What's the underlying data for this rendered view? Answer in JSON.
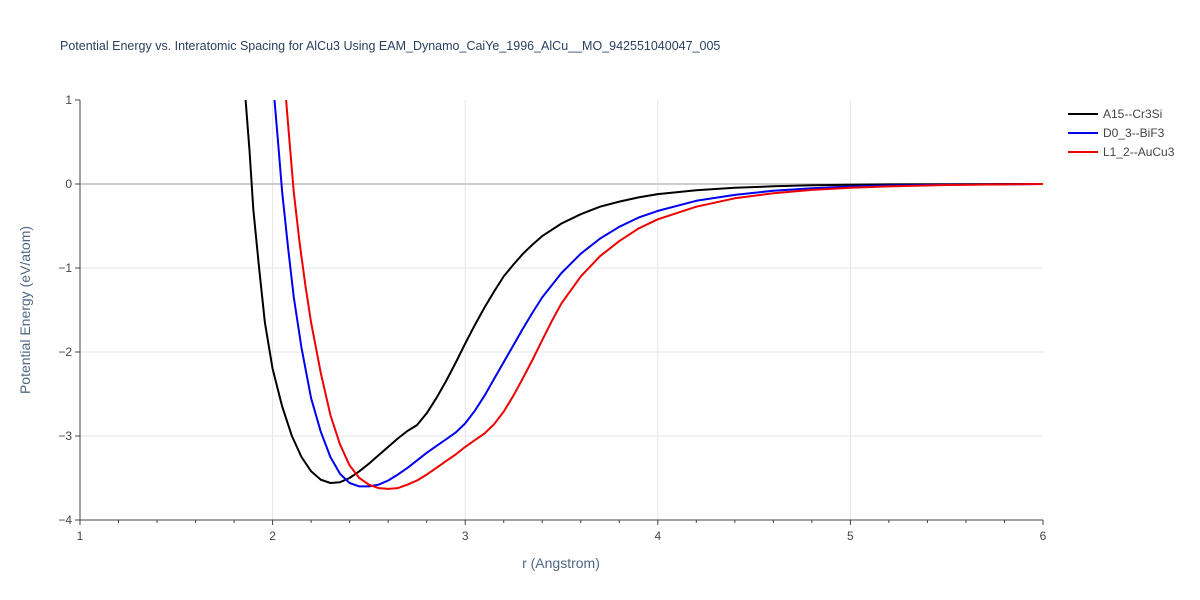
{
  "chart_data": {
    "type": "line",
    "title": "Potential Energy vs. Interatomic Spacing for AlCu3 Using EAM_Dynamo_CaiYe_1996_AlCu__MO_942551040047_005",
    "xlabel": "r (Angstrom)",
    "ylabel": "Potential Energy (eV/atom)",
    "xlim": [
      1,
      6
    ],
    "ylim": [
      -4,
      1
    ],
    "xticks": [
      1,
      2,
      3,
      4,
      5,
      6
    ],
    "yticks": [
      -4,
      -3,
      -2,
      -1,
      0,
      1
    ],
    "xtick_labels": [
      "1",
      "2",
      "3",
      "4",
      "5",
      "6"
    ],
    "ytick_labels": [
      "−4",
      "−3",
      "−2",
      "−1",
      "0",
      "1"
    ],
    "grid": true,
    "legend_position": "top-right",
    "series": [
      {
        "name": "A15--Cr3Si",
        "color": "#000000",
        "x": [
          1.86,
          1.88,
          1.9,
          1.93,
          1.96,
          2.0,
          2.05,
          2.1,
          2.15,
          2.2,
          2.25,
          2.3,
          2.35,
          2.4,
          2.45,
          2.5,
          2.55,
          2.6,
          2.65,
          2.7,
          2.75,
          2.8,
          2.85,
          2.9,
          2.95,
          3.0,
          3.05,
          3.1,
          3.15,
          3.2,
          3.25,
          3.3,
          3.35,
          3.4,
          3.5,
          3.6,
          3.7,
          3.8,
          3.9,
          4.0,
          4.2,
          4.4,
          4.6,
          4.8,
          5.0,
          5.2,
          5.5,
          6.0
        ],
        "y": [
          1.0,
          0.4,
          -0.3,
          -1.0,
          -1.65,
          -2.2,
          -2.65,
          -3.0,
          -3.25,
          -3.42,
          -3.52,
          -3.56,
          -3.55,
          -3.5,
          -3.42,
          -3.33,
          -3.23,
          -3.13,
          -3.03,
          -2.94,
          -2.87,
          -2.73,
          -2.55,
          -2.35,
          -2.13,
          -1.9,
          -1.68,
          -1.47,
          -1.28,
          -1.1,
          -0.96,
          -0.83,
          -0.72,
          -0.62,
          -0.47,
          -0.36,
          -0.27,
          -0.21,
          -0.16,
          -0.12,
          -0.075,
          -0.045,
          -0.027,
          -0.016,
          -0.009,
          -0.005,
          -0.002,
          0.0
        ]
      },
      {
        "name": "D0_3--BiF3",
        "color": "#0000ee",
        "x": [
          2.01,
          2.03,
          2.05,
          2.08,
          2.11,
          2.15,
          2.2,
          2.25,
          2.3,
          2.35,
          2.4,
          2.45,
          2.5,
          2.55,
          2.6,
          2.65,
          2.7,
          2.75,
          2.8,
          2.85,
          2.9,
          2.95,
          3.0,
          3.05,
          3.1,
          3.15,
          3.2,
          3.25,
          3.3,
          3.35,
          3.4,
          3.5,
          3.6,
          3.7,
          3.8,
          3.9,
          4.0,
          4.2,
          4.4,
          4.6,
          4.8,
          5.0,
          5.2,
          5.5,
          6.0
        ],
        "y": [
          1.0,
          0.45,
          -0.1,
          -0.75,
          -1.35,
          -1.95,
          -2.55,
          -2.95,
          -3.25,
          -3.45,
          -3.56,
          -3.6,
          -3.6,
          -3.58,
          -3.53,
          -3.46,
          -3.38,
          -3.29,
          -3.2,
          -3.12,
          -3.04,
          -2.96,
          -2.85,
          -2.7,
          -2.52,
          -2.32,
          -2.12,
          -1.92,
          -1.72,
          -1.53,
          -1.35,
          -1.06,
          -0.83,
          -0.65,
          -0.51,
          -0.4,
          -0.32,
          -0.2,
          -0.13,
          -0.08,
          -0.05,
          -0.03,
          -0.018,
          -0.008,
          0.0
        ]
      },
      {
        "name": "L1_2--AuCu3",
        "color": "#ee0000",
        "x": [
          2.07,
          2.09,
          2.11,
          2.14,
          2.17,
          2.2,
          2.25,
          2.3,
          2.35,
          2.4,
          2.45,
          2.5,
          2.55,
          2.6,
          2.65,
          2.7,
          2.75,
          2.8,
          2.85,
          2.9,
          2.95,
          3.0,
          3.05,
          3.1,
          3.15,
          3.2,
          3.25,
          3.3,
          3.35,
          3.4,
          3.45,
          3.5,
          3.6,
          3.7,
          3.8,
          3.9,
          4.0,
          4.2,
          4.4,
          4.6,
          4.8,
          5.0,
          5.2,
          5.5,
          6.0
        ],
        "y": [
          1.0,
          0.45,
          -0.1,
          -0.7,
          -1.2,
          -1.65,
          -2.25,
          -2.75,
          -3.1,
          -3.35,
          -3.5,
          -3.58,
          -3.62,
          -3.63,
          -3.62,
          -3.58,
          -3.53,
          -3.46,
          -3.38,
          -3.3,
          -3.22,
          -3.13,
          -3.05,
          -2.97,
          -2.86,
          -2.71,
          -2.52,
          -2.31,
          -2.09,
          -1.86,
          -1.63,
          -1.42,
          -1.1,
          -0.86,
          -0.68,
          -0.53,
          -0.42,
          -0.27,
          -0.17,
          -0.11,
          -0.07,
          -0.045,
          -0.028,
          -0.012,
          0.0
        ]
      }
    ]
  }
}
